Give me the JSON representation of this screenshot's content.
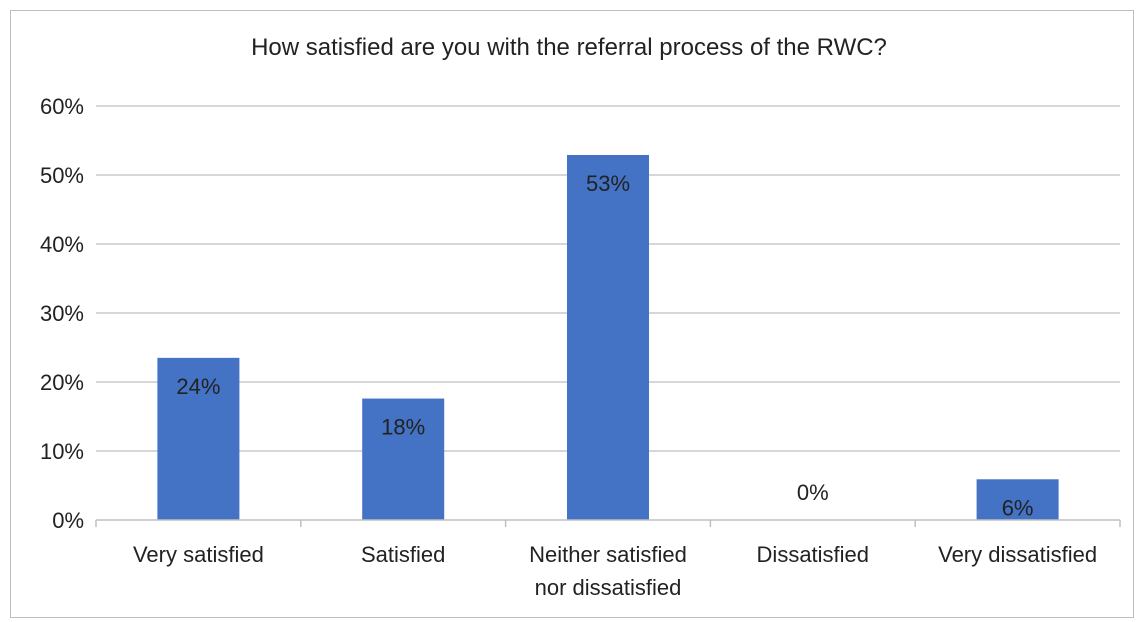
{
  "chart_data": {
    "type": "bar",
    "title": "How satisfied are you with the referral process of the RWC?",
    "xlabel": "",
    "ylabel": "",
    "categories": [
      [
        "Very satisfied"
      ],
      [
        "Satisfied"
      ],
      [
        "Neither satisfied",
        "nor dissatisfied"
      ],
      [
        "Dissatisfied"
      ],
      [
        "Very dissatisfied"
      ]
    ],
    "values": [
      23.5,
      17.6,
      52.9,
      0,
      5.9
    ],
    "data_labels": [
      "24%",
      "18%",
      "53%",
      "0%",
      "6%"
    ],
    "ylim": [
      0,
      60
    ],
    "yticks": [
      0,
      10,
      20,
      30,
      40,
      50,
      60
    ],
    "ytick_labels": [
      "0%",
      "10%",
      "20%",
      "30%",
      "40%",
      "50%",
      "60%"
    ],
    "grid": true,
    "legend": "none",
    "bar_color": "#4472c4",
    "grid_color": "#bfbfbf"
  }
}
